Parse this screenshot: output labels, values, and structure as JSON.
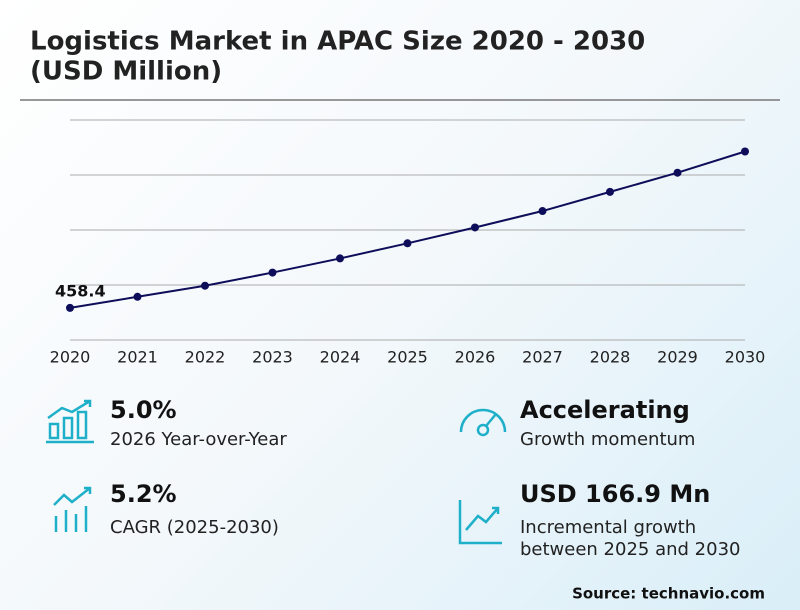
{
  "chart_data": {
    "type": "line",
    "title": "Logistics Market in APAC Size 2020 - 2030",
    "subtitle": "(USD Million)",
    "categories": [
      "2020",
      "2021",
      "2022",
      "2023",
      "2024",
      "2025",
      "2026",
      "2027",
      "2028",
      "2029",
      "2030"
    ],
    "values": [
      458.4,
      478.6,
      498.7,
      522.6,
      548.3,
      575.8,
      604.6,
      634.5,
      669.3,
      704.2,
      742.7
    ],
    "value_labels": [
      "458.4",
      null,
      null,
      null,
      null,
      null,
      null,
      null,
      null,
      null,
      null
    ],
    "color": "#0d0d5a",
    "ylim": [
      400,
      800
    ],
    "yticks": [
      400,
      500,
      600,
      700,
      800
    ],
    "show_ytick_labels": false,
    "grid": true
  },
  "stats": [
    {
      "value": "5.0%",
      "label": "2026 Year-over-Year"
    },
    {
      "value": "Accelerating",
      "label": "Growth momentum"
    },
    {
      "value": "5.2%",
      "label": "CAGR (2025-2030)"
    },
    {
      "value": "USD 166.9 Mn",
      "label": "Incremental growth between 2025 and 2030"
    }
  ],
  "source": "Source: technavio.com"
}
